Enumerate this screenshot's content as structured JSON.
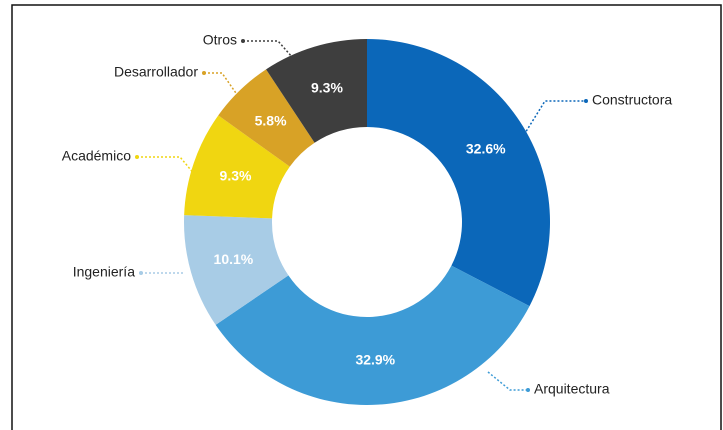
{
  "chart_data": {
    "type": "donut",
    "categories": [
      "Constructora",
      "Arquitectura",
      "Ingeniería",
      "Académico",
      "Desarrollador",
      "Otros"
    ],
    "values": [
      32.6,
      32.9,
      10.1,
      9.3,
      5.8,
      9.3
    ],
    "value_labels": [
      "32.6%",
      "32.9%",
      "10.1%",
      "9.3%",
      "5.8%",
      "9.3%"
    ],
    "colors": [
      "#0b67b9",
      "#3d9bd6",
      "#a8cce6",
      "#f0d611",
      "#d8a226",
      "#3e3e3e"
    ]
  }
}
